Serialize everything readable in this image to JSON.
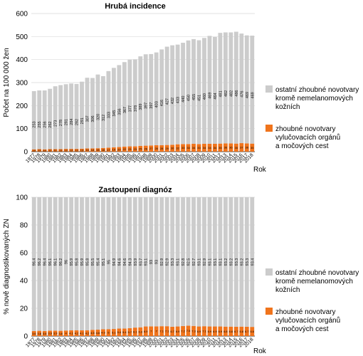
{
  "colors": {
    "other": "#cccccc",
    "uro": "#f0741c",
    "grid": "#d9d9d9"
  },
  "chart_data": [
    {
      "type": "bar",
      "stacked": true,
      "title": "Hrubá incidence",
      "ylabel": "Počet na 100 000 žen",
      "xlabel": "Rok",
      "ylim": [
        0,
        600
      ],
      "yticks": [
        0,
        100,
        200,
        300,
        400,
        500,
        600
      ],
      "grid": true,
      "legend_position": "right",
      "categories": [
        "1977",
        "1978",
        "1979",
        "1980",
        "1981",
        "1982",
        "1983",
        "1984",
        "1985",
        "1986",
        "1987",
        "1988",
        "1989",
        "1990",
        "1991",
        "1992",
        "1993",
        "1994",
        "1995",
        "1996",
        "1997",
        "1998",
        "1999",
        "2000",
        "2001",
        "2002",
        "2003",
        "2004",
        "2005",
        "2006",
        "2007",
        "2008",
        "2009",
        "2010",
        "2011",
        "2012",
        "2013",
        "2014",
        "2015",
        "2016",
        "2017",
        "2018"
      ],
      "series": [
        {
          "name": "zhoubné novotvary vylučovacích orgánů a močových cest",
          "values": [
            10,
            11,
            10,
            11,
            11,
            11,
            12,
            12,
            12,
            13,
            14,
            14,
            15,
            16,
            17,
            19,
            20,
            22,
            23,
            23,
            25,
            26,
            27,
            28,
            28,
            29,
            30,
            32,
            33,
            33,
            34,
            33,
            34,
            34,
            34,
            35,
            36,
            36,
            35,
            37,
            36,
            35
          ]
        },
        {
          "name": "ostatní zhoubné novotvary kromě nemelanomových kožních",
          "values": [
            253,
            255,
            256,
            262,
            273,
            278,
            281,
            284,
            282,
            291,
            307,
            306,
            320,
            312,
            333,
            345,
            356,
            367,
            377,
            378,
            389,
            397,
            397,
            403,
            416,
            427,
            432,
            433,
            440,
            450,
            455,
            451,
            460,
            469,
            464,
            481,
            482,
            482,
            486,
            476,
            469,
            469
          ]
        }
      ]
    },
    {
      "type": "bar",
      "stacked": true,
      "title": "Zastoupení diagnóz",
      "ylabel": "% nově diagnostikovaných ZN",
      "xlabel": "Rok",
      "ylim": [
        0,
        100
      ],
      "yticks": [
        0,
        20,
        40,
        60,
        80,
        100
      ],
      "grid": true,
      "legend_position": "right",
      "categories": [
        "1977",
        "1978",
        "1979",
        "1980",
        "1981",
        "1982",
        "1983",
        "1984",
        "1985",
        "1986",
        "1987",
        "1988",
        "1989",
        "1990",
        "1991",
        "1992",
        "1993",
        "1994",
        "1995",
        "1996",
        "1997",
        "1998",
        "1999",
        "2000",
        "2001",
        "2002",
        "2003",
        "2004",
        "2005",
        "2006",
        "2007",
        "2008",
        "2009",
        "2010",
        "2011",
        "2012",
        "2013",
        "2014",
        "2015",
        "2016",
        "2017",
        "2018"
      ],
      "series": [
        {
          "name": "zhoubné novotvary vylučovacích orgánů a močových cest",
          "values": [
            3.6,
            3.8,
            3.6,
            3.9,
            3.9,
            3.8,
            4.0,
            4.1,
            4.2,
            4.1,
            4.2,
            4.5,
            4.6,
            4.9,
            5.0,
            5.1,
            5.4,
            5.4,
            5.7,
            6.1,
            6.3,
            6.9,
            7.0,
            7.0,
            7.1,
            7.1,
            6.7,
            6.9,
            7.2,
            7.5,
            7.3,
            6.9,
            7.1,
            6.9,
            6.9,
            6.9,
            6.8,
            6.8,
            6.7,
            6.8,
            6.7,
            6.6
          ]
        },
        {
          "name": "ostatní zhoubné novotvary kromě nemelanomových kožních",
          "values": [
            96.4,
            96.2,
            96.4,
            96.1,
            96.1,
            96.2,
            96.0,
            95.9,
            95.8,
            95.9,
            95.8,
            95.5,
            95.4,
            95.1,
            95.0,
            94.9,
            94.6,
            94.6,
            94.3,
            93.9,
            93.7,
            93.1,
            93.0,
            93.0,
            92.9,
            92.9,
            93.3,
            93.1,
            92.8,
            92.5,
            92.7,
            93.1,
            92.9,
            93.1,
            93.1,
            93.1,
            93.2,
            93.2,
            93.3,
            93.2,
            93.3,
            93.4
          ]
        }
      ]
    }
  ],
  "legend": [
    {
      "key": "other",
      "label_lines": [
        "ostatní zhoubné novotvary",
        "kromě nemelanomových",
        "kožních"
      ]
    },
    {
      "key": "uro",
      "label_lines": [
        "zhoubné novotvary",
        "vylučovacích orgánů",
        "a močových cest"
      ]
    }
  ]
}
